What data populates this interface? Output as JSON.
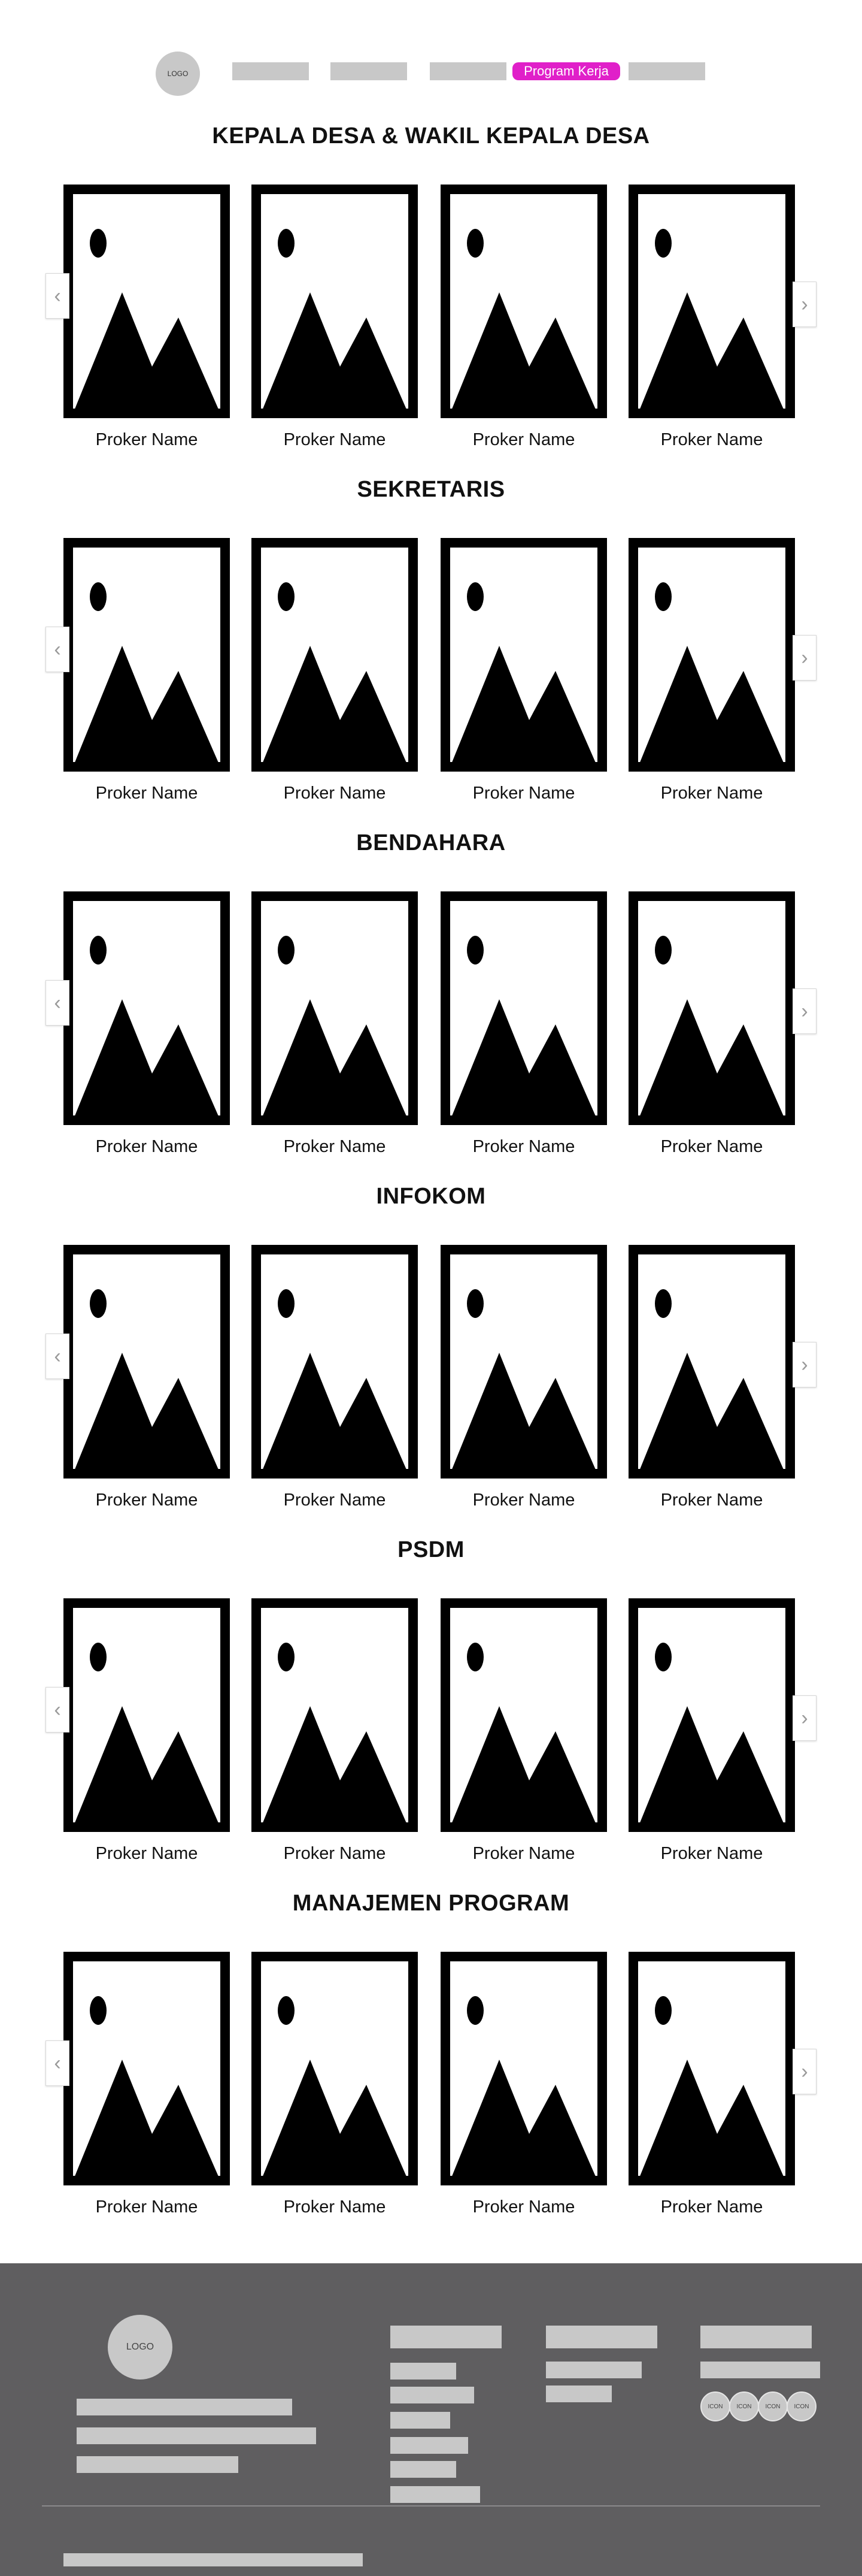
{
  "nav": {
    "logo_text": "LOGO",
    "items": [
      "",
      "",
      "",
      "Program Kerja",
      ""
    ],
    "active_color": "#e020c9"
  },
  "sections": [
    {
      "title": "KEPALA DESA & WAKIL KEPALA DESA",
      "cards": [
        "Proker Name",
        "Proker Name",
        "Proker Name",
        "Proker Name"
      ]
    },
    {
      "title": "SEKRETARIS",
      "cards": [
        "Proker Name",
        "Proker Name",
        "Proker Name",
        "Proker Name"
      ]
    },
    {
      "title": "BENDAHARA",
      "cards": [
        "Proker Name",
        "Proker Name",
        "Proker Name",
        "Proker Name"
      ]
    },
    {
      "title": "INFOKOM",
      "cards": [
        "Proker Name",
        "Proker Name",
        "Proker Name",
        "Proker Name"
      ]
    },
    {
      "title": "PSDM",
      "cards": [
        "Proker Name",
        "Proker Name",
        "Proker Name",
        "Proker Name"
      ]
    },
    {
      "title": "MANAJEMEN PROGRAM",
      "cards": [
        "Proker Name",
        "Proker Name",
        "Proker Name",
        "Proker Name"
      ]
    }
  ],
  "icons": {
    "image_placeholder": "image-placeholder-icon",
    "prev": "chevron-left-icon",
    "next": "chevron-right-icon"
  },
  "arrows": {
    "prev": "‹",
    "next": "›"
  },
  "footer": {
    "logo_text": "LOGO",
    "social_icons": [
      "ICON",
      "ICON",
      "ICON",
      "ICON"
    ],
    "background_color": "#5f5e60"
  }
}
